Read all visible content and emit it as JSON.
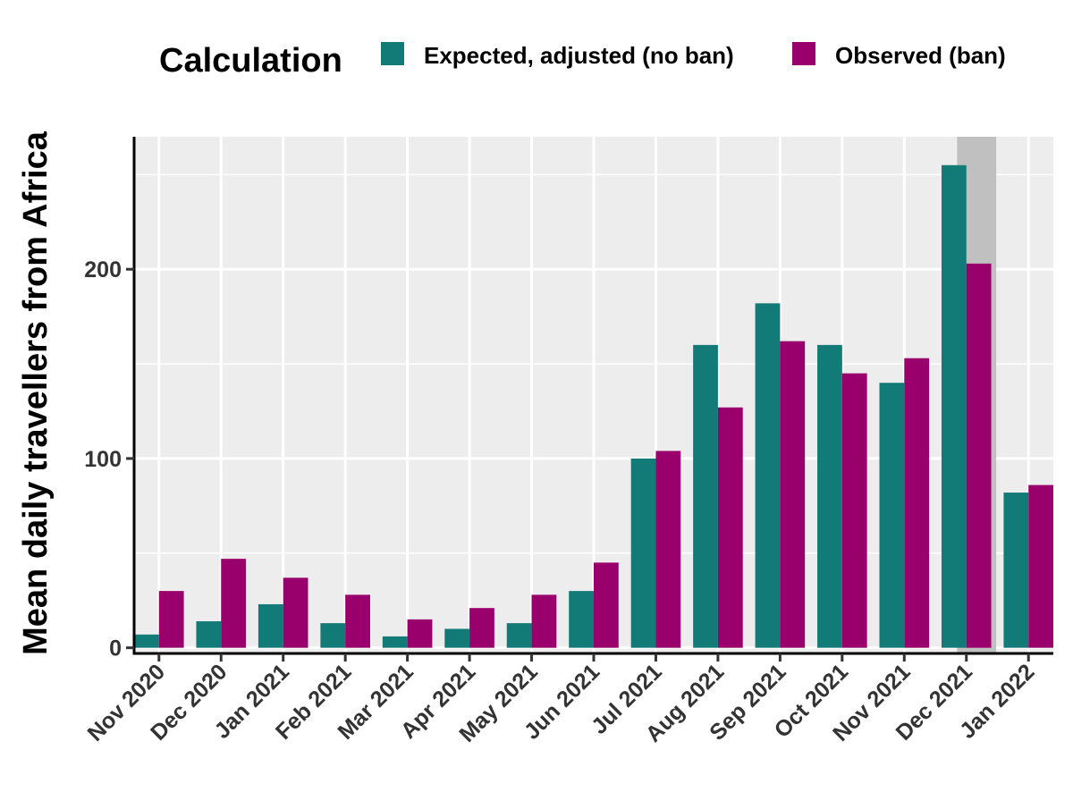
{
  "chart_data": {
    "type": "bar",
    "title": "",
    "xlabel": "",
    "ylabel": "Mean daily travellers from Africa",
    "categories": [
      "Nov 2020",
      "Dec 2020",
      "Jan 2021",
      "Feb 2021",
      "Mar 2021",
      "Apr 2021",
      "May 2021",
      "Jun 2021",
      "Jul 2021",
      "Aug 2021",
      "Sep 2021",
      "Oct 2021",
      "Nov 2021",
      "Dec 2021",
      "Jan 2022"
    ],
    "series": [
      {
        "name": "Expected, adjusted (no ban)",
        "color": "#127B78",
        "values": [
          7,
          14,
          23,
          13,
          6,
          10,
          13,
          30,
          100,
          160,
          182,
          160,
          140,
          255,
          82
        ]
      },
      {
        "name": "Observed (ban)",
        "color": "#9A006C",
        "values": [
          30,
          47,
          37,
          28,
          15,
          21,
          28,
          45,
          104,
          127,
          162,
          145,
          153,
          203,
          86
        ]
      }
    ],
    "ylim": [
      -3,
      270
    ],
    "yticks": [
      0,
      100,
      200
    ],
    "highlight_band": {
      "from": "Dec 2021",
      "to": "Jan 2022",
      "color": "#C0C0C0"
    },
    "legend": {
      "title": "Calculation",
      "position": "top"
    },
    "grid": true,
    "panel_background": "#EDEDED"
  }
}
